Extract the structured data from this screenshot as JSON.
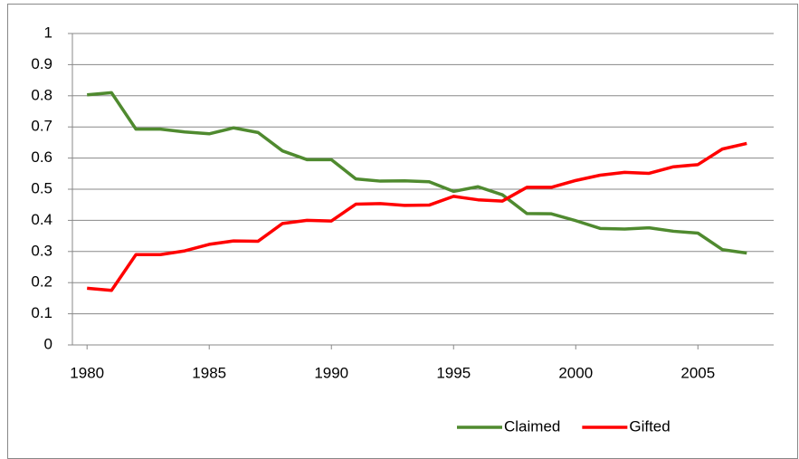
{
  "chart_data": {
    "type": "line",
    "x": [
      1980,
      1981,
      1982,
      1983,
      1984,
      1985,
      1986,
      1987,
      1988,
      1989,
      1990,
      1991,
      1992,
      1993,
      1994,
      1995,
      1996,
      1997,
      1998,
      1999,
      2000,
      2001,
      2002,
      2003,
      2004,
      2005,
      2006,
      2007
    ],
    "series": [
      {
        "name": "Claimed",
        "color": "#4f8a2f",
        "values": [
          0.803,
          0.81,
          0.693,
          0.693,
          0.684,
          0.678,
          0.697,
          0.682,
          0.623,
          0.595,
          0.595,
          0.533,
          0.526,
          0.527,
          0.524,
          0.493,
          0.508,
          0.482,
          0.422,
          0.421,
          0.399,
          0.374,
          0.372,
          0.376,
          0.365,
          0.359,
          0.306,
          0.295
        ]
      },
      {
        "name": "Gifted",
        "color": "#ff0000",
        "values": [
          0.182,
          0.175,
          0.29,
          0.29,
          0.302,
          0.323,
          0.334,
          0.333,
          0.39,
          0.4,
          0.398,
          0.452,
          0.454,
          0.448,
          0.449,
          0.477,
          0.466,
          0.462,
          0.506,
          0.506,
          0.528,
          0.545,
          0.554,
          0.551,
          0.572,
          0.579,
          0.629,
          0.647
        ]
      }
    ],
    "xlim": [
      1979.4,
      2008.1
    ],
    "xticks": [
      1980,
      1985,
      1990,
      1995,
      2000,
      2005
    ],
    "ylim": [
      0,
      1
    ],
    "yticks": [
      0,
      0.1,
      0.2,
      0.3,
      0.4,
      0.5,
      0.6,
      0.7,
      0.8,
      0.9,
      1
    ],
    "grid": true,
    "legend": "bottom"
  }
}
